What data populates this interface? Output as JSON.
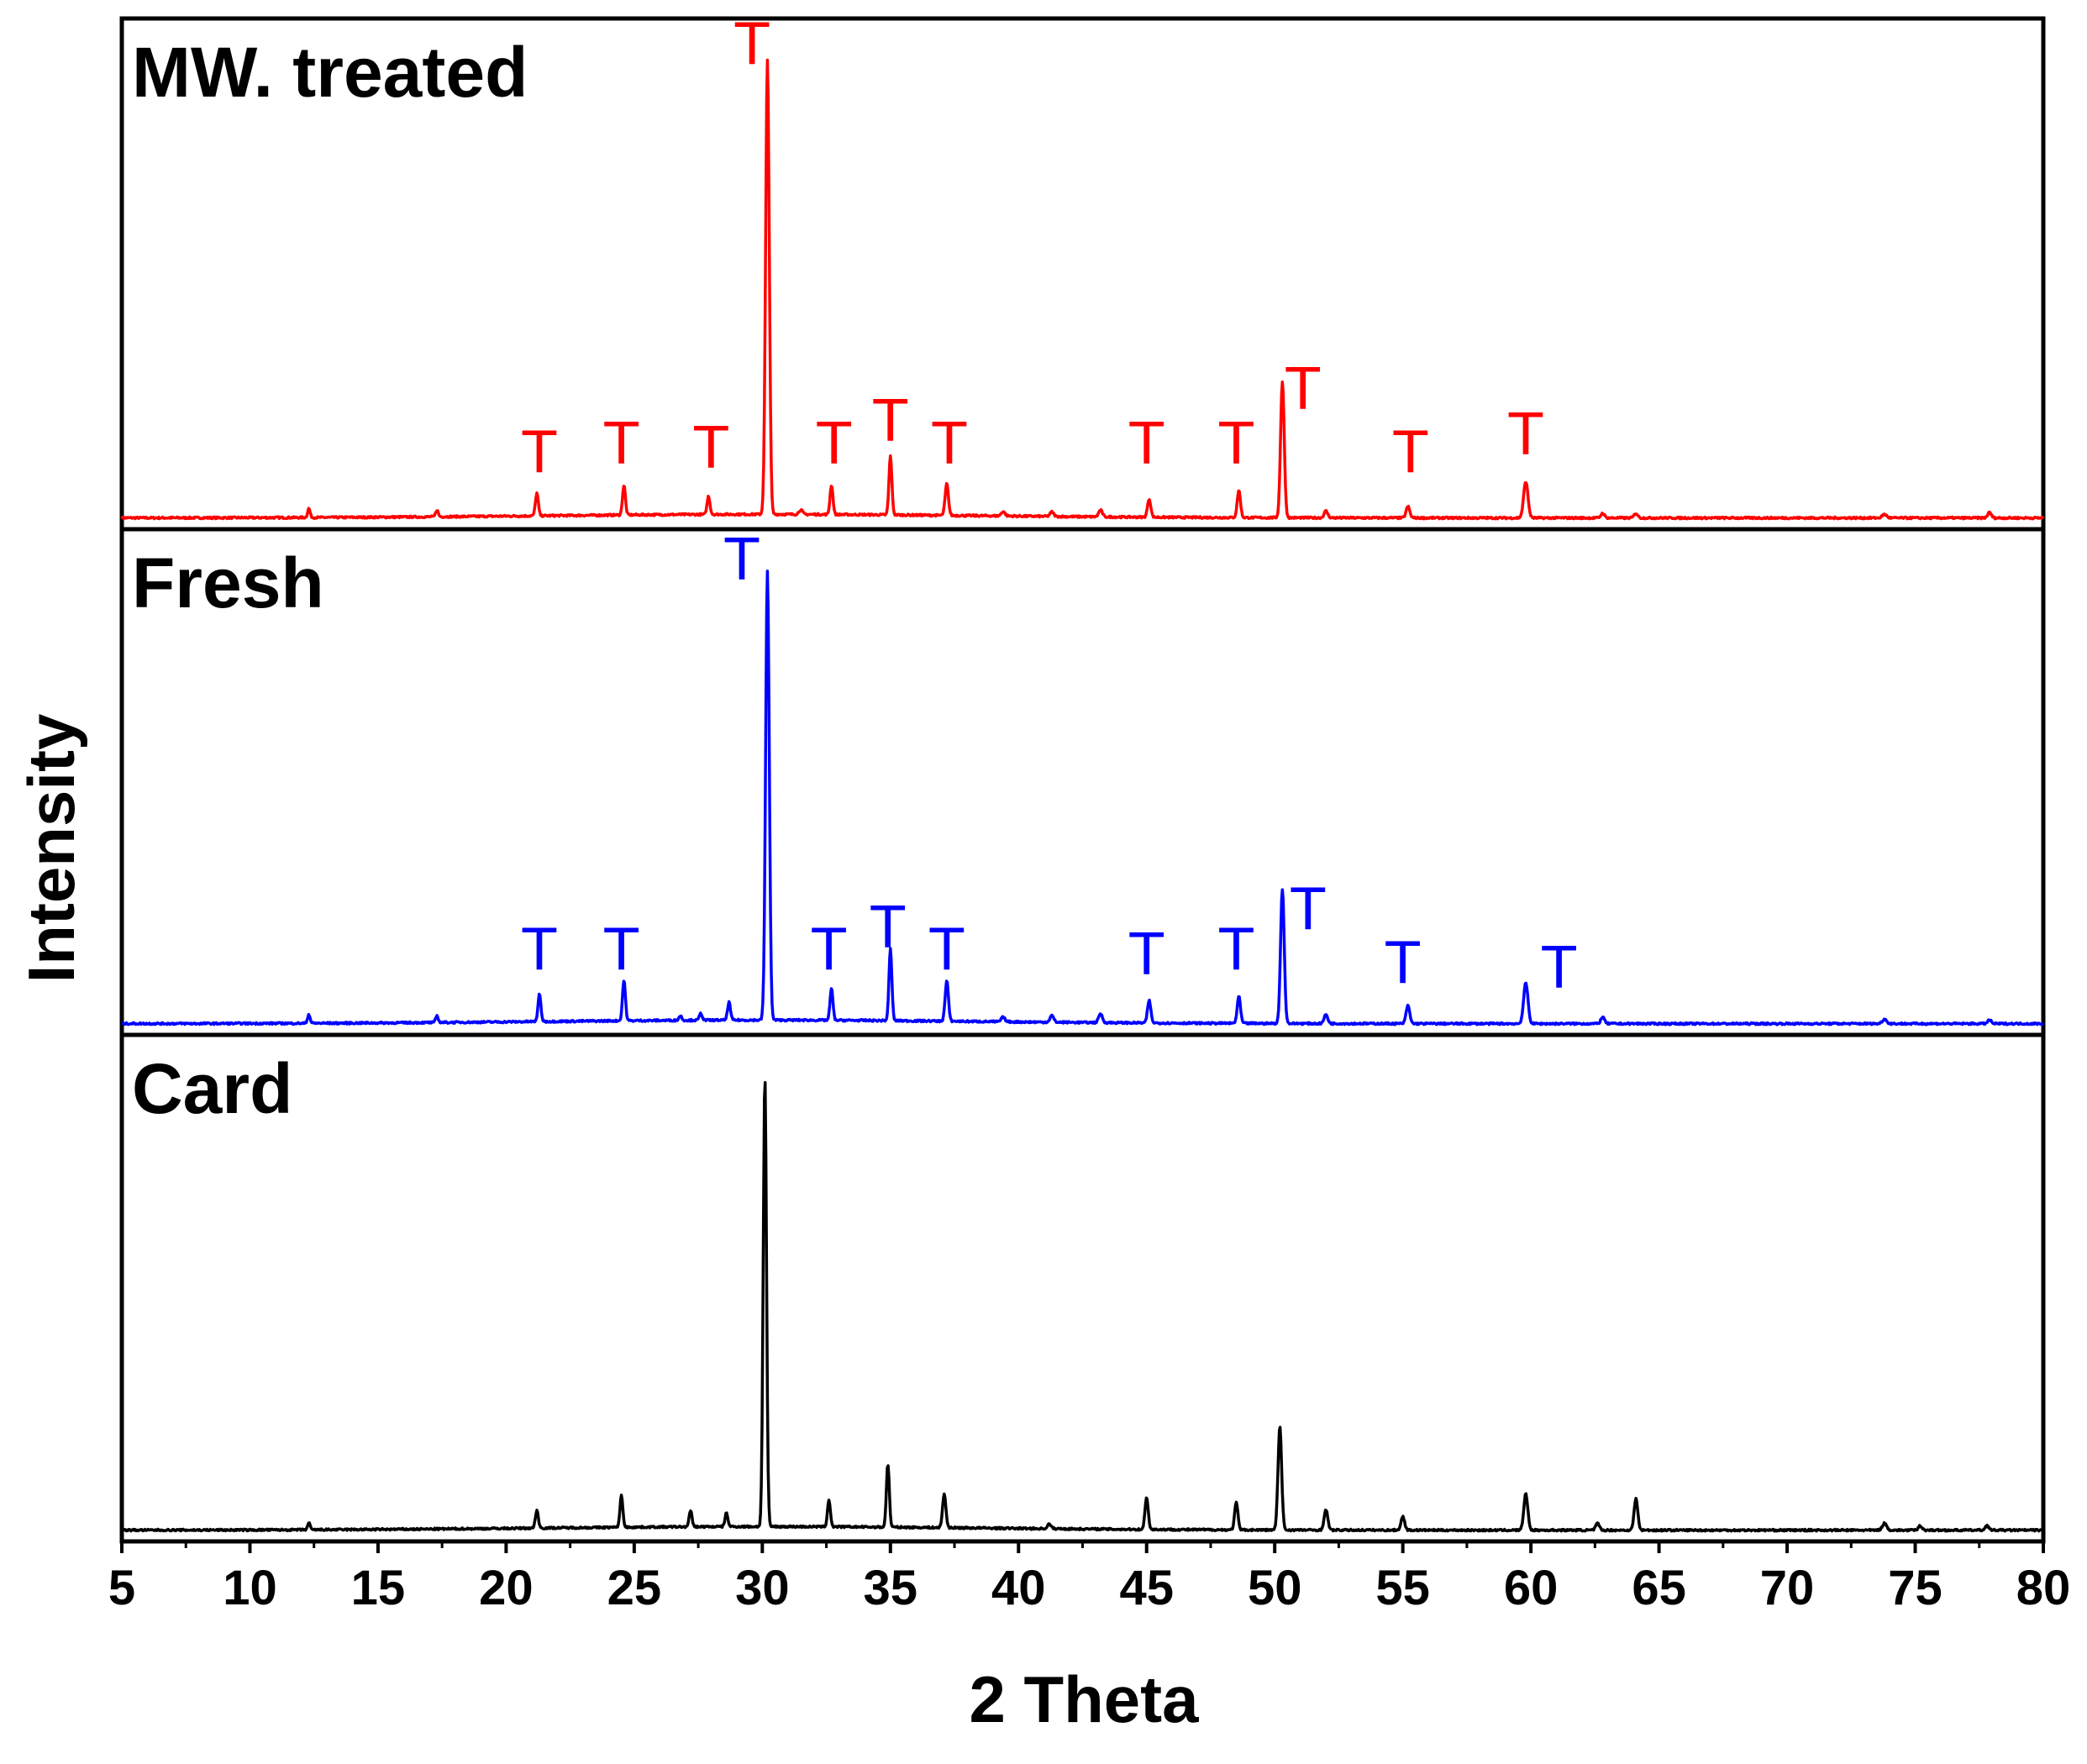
{
  "chart_data": {
    "type": "line",
    "title": "",
    "xlabel": "2 Theta",
    "ylabel": "Intensity",
    "xlim": [
      5,
      80
    ],
    "xticks": [
      "5",
      "10",
      "15",
      "20",
      "25",
      "30",
      "35",
      "40",
      "45",
      "50",
      "55",
      "60",
      "65",
      "70",
      "75",
      "80"
    ],
    "ylim": [
      0,
      1
    ],
    "grid": false,
    "series": [
      {
        "name": "MW. treated",
        "color": "#ff0000",
        "baseline": 0.01,
        "peaks": [
          {
            "x": 12.3,
            "y": 0.02,
            "w": 0.07
          },
          {
            "x": 17.3,
            "y": 0.015,
            "w": 0.07
          },
          {
            "x": 21.2,
            "y": 0.05,
            "w": 0.08
          },
          {
            "x": 24.6,
            "y": 0.065,
            "w": 0.08
          },
          {
            "x": 27.9,
            "y": 0.04,
            "w": 0.08
          },
          {
            "x": 30.2,
            "y": 1.0,
            "w": 0.1
          },
          {
            "x": 31.5,
            "y": 0.01,
            "w": 0.1
          },
          {
            "x": 32.7,
            "y": 0.065,
            "w": 0.08
          },
          {
            "x": 35.0,
            "y": 0.13,
            "w": 0.08
          },
          {
            "x": 37.2,
            "y": 0.07,
            "w": 0.09
          },
          {
            "x": 39.4,
            "y": 0.01,
            "w": 0.1
          },
          {
            "x": 41.3,
            "y": 0.01,
            "w": 0.1
          },
          {
            "x": 43.2,
            "y": 0.015,
            "w": 0.1
          },
          {
            "x": 45.1,
            "y": 0.04,
            "w": 0.09
          },
          {
            "x": 48.6,
            "y": 0.06,
            "w": 0.09
          },
          {
            "x": 50.3,
            "y": 0.3,
            "w": 0.1
          },
          {
            "x": 52.0,
            "y": 0.015,
            "w": 0.1
          },
          {
            "x": 55.2,
            "y": 0.025,
            "w": 0.1
          },
          {
            "x": 59.8,
            "y": 0.08,
            "w": 0.12
          },
          {
            "x": 62.8,
            "y": 0.01,
            "w": 0.1
          },
          {
            "x": 64.1,
            "y": 0.01,
            "w": 0.1
          },
          {
            "x": 73.8,
            "y": 0.008,
            "w": 0.12
          },
          {
            "x": 77.9,
            "y": 0.012,
            "w": 0.1
          }
        ],
        "markers": [
          {
            "x": 21.3,
            "y": 0.11
          },
          {
            "x": 24.5,
            "y": 0.13
          },
          {
            "x": 28.0,
            "y": 0.12
          },
          {
            "x": 29.6,
            "y": 1.01
          },
          {
            "x": 32.8,
            "y": 0.13
          },
          {
            "x": 35.0,
            "y": 0.18
          },
          {
            "x": 37.3,
            "y": 0.13
          },
          {
            "x": 45.0,
            "y": 0.13
          },
          {
            "x": 48.5,
            "y": 0.13
          },
          {
            "x": 51.1,
            "y": 0.25
          },
          {
            "x": 55.3,
            "y": 0.11
          },
          {
            "x": 59.8,
            "y": 0.15
          }
        ]
      },
      {
        "name": "Fresh",
        "color": "#0000ff",
        "baseline": 0.01,
        "peaks": [
          {
            "x": 12.3,
            "y": 0.02,
            "w": 0.07
          },
          {
            "x": 17.3,
            "y": 0.015,
            "w": 0.07
          },
          {
            "x": 21.3,
            "y": 0.06,
            "w": 0.08
          },
          {
            "x": 24.6,
            "y": 0.09,
            "w": 0.08
          },
          {
            "x": 26.8,
            "y": 0.01,
            "w": 0.08
          },
          {
            "x": 27.6,
            "y": 0.015,
            "w": 0.08
          },
          {
            "x": 28.7,
            "y": 0.04,
            "w": 0.08
          },
          {
            "x": 30.2,
            "y": 1.0,
            "w": 0.1
          },
          {
            "x": 32.7,
            "y": 0.07,
            "w": 0.08
          },
          {
            "x": 35.0,
            "y": 0.16,
            "w": 0.08
          },
          {
            "x": 37.2,
            "y": 0.09,
            "w": 0.09
          },
          {
            "x": 39.4,
            "y": 0.01,
            "w": 0.1
          },
          {
            "x": 41.3,
            "y": 0.015,
            "w": 0.1
          },
          {
            "x": 43.2,
            "y": 0.02,
            "w": 0.1
          },
          {
            "x": 45.1,
            "y": 0.05,
            "w": 0.09
          },
          {
            "x": 48.6,
            "y": 0.06,
            "w": 0.09
          },
          {
            "x": 50.3,
            "y": 0.3,
            "w": 0.1
          },
          {
            "x": 52.0,
            "y": 0.02,
            "w": 0.1
          },
          {
            "x": 55.2,
            "y": 0.04,
            "w": 0.1
          },
          {
            "x": 59.8,
            "y": 0.09,
            "w": 0.12
          },
          {
            "x": 62.8,
            "y": 0.015,
            "w": 0.1
          },
          {
            "x": 73.8,
            "y": 0.01,
            "w": 0.12
          },
          {
            "x": 77.9,
            "y": 0.008,
            "w": 0.1
          }
        ],
        "markers": [
          {
            "x": 21.3,
            "y": 0.13
          },
          {
            "x": 24.5,
            "y": 0.13
          },
          {
            "x": 29.2,
            "y": 1.0
          },
          {
            "x": 32.6,
            "y": 0.13
          },
          {
            "x": 34.9,
            "y": 0.18
          },
          {
            "x": 37.2,
            "y": 0.13
          },
          {
            "x": 45.0,
            "y": 0.12
          },
          {
            "x": 48.5,
            "y": 0.13
          },
          {
            "x": 51.3,
            "y": 0.22
          },
          {
            "x": 55.0,
            "y": 0.1
          },
          {
            "x": 61.1,
            "y": 0.09
          }
        ]
      },
      {
        "name": "Card",
        "color": "#000000",
        "baseline": 0.01,
        "peaks": [
          {
            "x": 12.3,
            "y": 0.015,
            "w": 0.07
          },
          {
            "x": 21.2,
            "y": 0.04,
            "w": 0.08
          },
          {
            "x": 24.5,
            "y": 0.07,
            "w": 0.08
          },
          {
            "x": 27.2,
            "y": 0.035,
            "w": 0.08
          },
          {
            "x": 28.6,
            "y": 0.03,
            "w": 0.08
          },
          {
            "x": 30.1,
            "y": 1.0,
            "w": 0.09
          },
          {
            "x": 32.6,
            "y": 0.06,
            "w": 0.08
          },
          {
            "x": 34.9,
            "y": 0.14,
            "w": 0.08
          },
          {
            "x": 37.1,
            "y": 0.075,
            "w": 0.09
          },
          {
            "x": 41.2,
            "y": 0.01,
            "w": 0.1
          },
          {
            "x": 45.0,
            "y": 0.07,
            "w": 0.09
          },
          {
            "x": 48.5,
            "y": 0.06,
            "w": 0.09
          },
          {
            "x": 50.2,
            "y": 0.23,
            "w": 0.1
          },
          {
            "x": 52.0,
            "y": 0.045,
            "w": 0.1
          },
          {
            "x": 55.0,
            "y": 0.03,
            "w": 0.1
          },
          {
            "x": 59.8,
            "y": 0.08,
            "w": 0.11
          },
          {
            "x": 62.6,
            "y": 0.015,
            "w": 0.1
          },
          {
            "x": 64.1,
            "y": 0.07,
            "w": 0.1
          },
          {
            "x": 73.8,
            "y": 0.015,
            "w": 0.12
          },
          {
            "x": 75.2,
            "y": 0.01,
            "w": 0.1
          },
          {
            "x": 77.8,
            "y": 0.01,
            "w": 0.1
          }
        ],
        "markers": []
      }
    ],
    "marker_label": "T"
  }
}
